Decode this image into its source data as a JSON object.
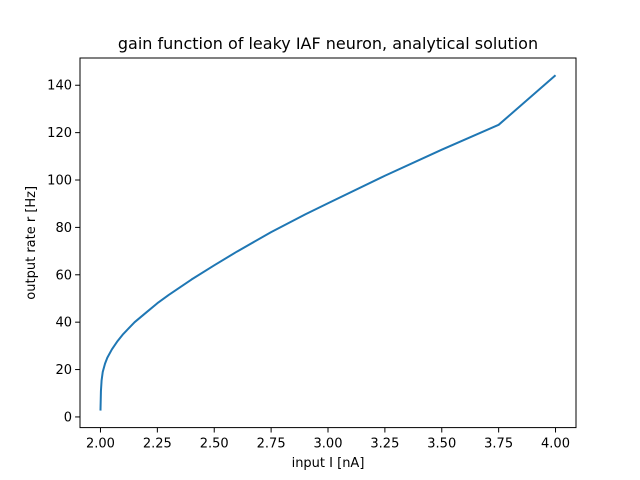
{
  "chart_data": {
    "type": "line",
    "title": "gain function of leaky IAF neuron, analytical solution",
    "xlabel": "input I [nA]",
    "ylabel": "output rate r [Hz]",
    "xlim": [
      1.91,
      4.09
    ],
    "ylim": [
      -4.5,
      151.5
    ],
    "xticks": [
      2.0,
      2.25,
      2.5,
      2.75,
      3.0,
      3.25,
      3.5,
      3.75,
      4.0
    ],
    "xtick_labels": [
      "2.00",
      "2.25",
      "2.50",
      "2.75",
      "3.00",
      "3.25",
      "3.50",
      "3.75",
      "4.00"
    ],
    "yticks": [
      0,
      20,
      40,
      60,
      80,
      100,
      120,
      140
    ],
    "ytick_labels": [
      "0",
      "20",
      "40",
      "60",
      "80",
      "100",
      "120",
      "140"
    ],
    "grid": false,
    "legend": "none",
    "series": [
      {
        "color": "#1f77b4",
        "x": [
          2.0,
          2.002,
          2.005,
          2.01,
          2.02,
          2.03,
          2.05,
          2.075,
          2.1,
          2.15,
          2.2,
          2.25,
          2.3,
          2.4,
          2.5,
          2.6,
          2.75,
          2.9,
          3.0,
          3.25,
          3.5,
          3.75,
          4.0
        ],
        "y": [
          2.7,
          11.0,
          15.5,
          19.0,
          22.5,
          25.0,
          28.5,
          32.0,
          35.0,
          40.0,
          44.0,
          48.0,
          51.5,
          58.0,
          64.0,
          69.8,
          78.0,
          85.5,
          90.2,
          101.8,
          112.8,
          123.3,
          144.2
        ]
      }
    ]
  }
}
